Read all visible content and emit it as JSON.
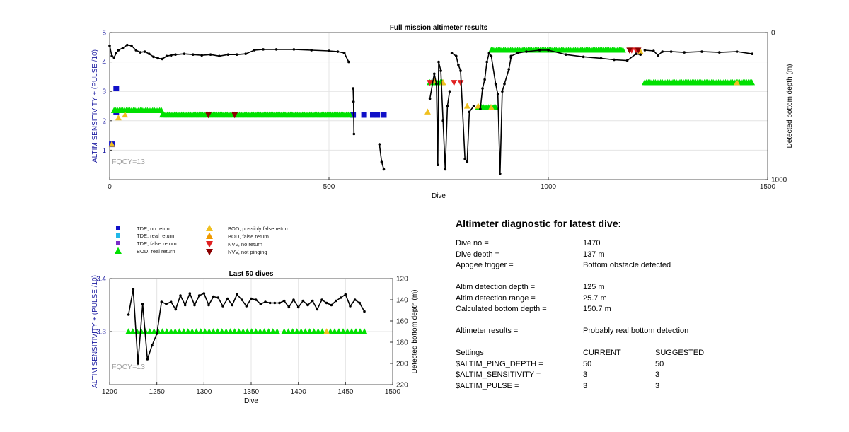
{
  "colors": {
    "tde_no_return": "#1010c8",
    "tde_real_return": "#20b8e8",
    "tde_false_return": "#7a2cc8",
    "bod_real_return": "#00e000",
    "bod_possibly_false_return": "#f0c020",
    "bod_false_return": "#f09a00",
    "nvv_no_return": "#e02020",
    "nvv_not_pinging": "#8a0000",
    "depth_line": "#000000",
    "axis_left": "#1a1aa0",
    "fqcy": "#a0a0a0"
  },
  "chart_data": [
    {
      "type": "scatter",
      "title": "Full mission altimeter results",
      "xlabel": "Dive",
      "ylabel": "ALTIM SENSITIVITY + (PULSE /10)",
      "y2label": "Detected bottom depth (m)",
      "xlim": [
        0,
        1500
      ],
      "ylim": [
        0,
        5
      ],
      "y2lim": [
        0,
        1000
      ],
      "y2_reversed": true,
      "x_ticks": [
        "0",
        "500",
        "1000",
        "1500"
      ],
      "y_ticks": [
        "1",
        "2",
        "3",
        "4",
        "5"
      ],
      "y2_ticks": [
        "0",
        "1000"
      ],
      "annotation": "FQCY=13",
      "grid": true,
      "series": [
        {
          "name": "TDE, no return",
          "marker": "square",
          "x": [
            5,
            15,
            15,
            555,
            580,
            600,
            610,
            625
          ],
          "y": [
            1.2,
            3.1,
            2.3,
            2.2,
            2.2,
            2.2,
            2.2,
            2.2
          ]
        },
        {
          "name": "BOD, real return",
          "marker": "triangle-up",
          "segments": [
            [
              10,
              120,
              2.35
            ],
            [
              120,
              550,
              2.2
            ],
            [
              730,
              760,
              3.3
            ],
            [
              840,
              880,
              2.45
            ],
            [
              870,
              1170,
              4.4
            ],
            [
              1220,
              1465,
              3.3
            ]
          ]
        },
        {
          "name": "BOD, possibly false return",
          "marker": "triangle-up",
          "x": [
            5,
            20,
            35,
            725,
            740,
            760,
            815,
            840,
            870,
            1210,
            1430
          ],
          "y": [
            1.2,
            2.1,
            2.2,
            2.3,
            3.35,
            3.3,
            2.5,
            2.5,
            2.45,
            4.35,
            3.3
          ]
        },
        {
          "name": "NVV, no return",
          "marker": "triangle-down",
          "x": [
            730,
            785,
            800,
            1190,
            1200
          ],
          "y": [
            3.3,
            3.3,
            3.3,
            4.4,
            4.4
          ]
        },
        {
          "name": "NVV, not pinging",
          "marker": "triangle-down",
          "x": [
            225,
            285,
            1185,
            1205
          ],
          "y": [
            2.2,
            2.2,
            4.4,
            4.4
          ]
        }
      ],
      "depth_series": {
        "name": "Detected bottom depth",
        "segments": [
          [
            [
              0,
              90
            ],
            [
              5,
              160
            ],
            [
              10,
              170
            ],
            [
              15,
              140
            ],
            [
              20,
              120
            ],
            [
              30,
              105
            ],
            [
              40,
              85
            ],
            [
              50,
              90
            ],
            [
              60,
              120
            ],
            [
              70,
              135
            ],
            [
              80,
              130
            ],
            [
              90,
              145
            ],
            [
              100,
              165
            ],
            [
              110,
              175
            ],
            [
              120,
              180
            ],
            [
              130,
              160
            ],
            [
              140,
              155
            ],
            [
              150,
              150
            ],
            [
              170,
              145
            ],
            [
              190,
              150
            ],
            [
              210,
              155
            ],
            [
              230,
              150
            ],
            [
              250,
              160
            ],
            [
              270,
              150
            ],
            [
              290,
              150
            ],
            [
              310,
              145
            ],
            [
              330,
              120
            ],
            [
              350,
              115
            ],
            [
              380,
              115
            ],
            [
              420,
              115
            ],
            [
              460,
              120
            ],
            [
              500,
              125
            ],
            [
              520,
              130
            ],
            [
              535,
              140
            ],
            [
              545,
              200
            ]
          ],
          [
            [
              555,
              380
            ],
            [
              556,
              470
            ],
            [
              557,
              690
            ]
          ],
          [
            [
              615,
              760
            ],
            [
              620,
              880
            ],
            [
              625,
              930
            ]
          ],
          [
            [
              730,
              450
            ],
            [
              740,
              280
            ],
            [
              745,
              350
            ],
            [
              748,
              900
            ],
            [
              750,
              200
            ],
            [
              755,
              260
            ],
            [
              760,
              600
            ],
            [
              765,
              930
            ],
            [
              770,
              500
            ],
            [
              775,
              400
            ]
          ],
          [
            [
              780,
              140
            ],
            [
              790,
              160
            ],
            [
              795,
              220
            ],
            [
              800,
              260
            ],
            [
              810,
              860
            ],
            [
              815,
              880
            ],
            [
              820,
              540
            ],
            [
              830,
              500
            ]
          ],
          [
            [
              845,
              520
            ],
            [
              850,
              380
            ],
            [
              855,
              320
            ],
            [
              860,
              200
            ],
            [
              865,
              140
            ],
            [
              870,
              160
            ],
            [
              880,
              350
            ],
            [
              885,
              420
            ],
            [
              890,
              960
            ],
            [
              895,
              400
            ],
            [
              900,
              350
            ],
            [
              910,
              250
            ],
            [
              915,
              170
            ]
          ],
          [
            [
              915,
              160
            ],
            [
              930,
              140
            ],
            [
              950,
              130
            ],
            [
              980,
              120
            ],
            [
              1000,
              120
            ],
            [
              1040,
              150
            ],
            [
              1080,
              165
            ],
            [
              1120,
              175
            ],
            [
              1150,
              185
            ],
            [
              1180,
              190
            ],
            [
              1200,
              145
            ],
            [
              1210,
              150
            ]
          ],
          [
            [
              1220,
              120
            ],
            [
              1240,
              125
            ],
            [
              1250,
              155
            ],
            [
              1260,
              130
            ],
            [
              1280,
              130
            ],
            [
              1310,
              135
            ],
            [
              1350,
              130
            ],
            [
              1390,
              135
            ],
            [
              1430,
              130
            ],
            [
              1465,
              145
            ]
          ]
        ]
      }
    },
    {
      "type": "scatter",
      "title": "Last 50 dives",
      "xlabel": "Dive",
      "ylabel": "ALTIM SENSITIVITY + (PULSE /10)",
      "y2label": "Detected bottom depth (m)",
      "xlim": [
        1200,
        1500
      ],
      "ylim": [
        3.2,
        3.4
      ],
      "y2lim": [
        120,
        220
      ],
      "y2_reversed": true,
      "x_ticks": [
        "1200",
        "1250",
        "1300",
        "1350",
        "1400",
        "1450",
        "1500"
      ],
      "y_ticks": [
        "3.3",
        "3.4"
      ],
      "y2_ticks": [
        "120",
        "140",
        "160",
        "180",
        "200",
        "220"
      ],
      "annotation": "FQCY=13",
      "grid": true,
      "series": [
        {
          "name": "BOD, real return",
          "marker": "triangle-up",
          "segments": [
            [
              1220,
              1380,
              3.3
            ],
            [
              1385,
              1428,
              3.3
            ],
            [
              1434,
              1470,
              3.3
            ]
          ]
        },
        {
          "name": "BOD, possibly false return",
          "marker": "triangle-up",
          "x": [
            1430
          ],
          "y": [
            3.3
          ]
        }
      ],
      "depth_series": {
        "name": "Detected bottom depth",
        "x": [
          1220,
          1225,
          1230,
          1235,
          1240,
          1245,
          1250,
          1255,
          1260,
          1265,
          1270,
          1275,
          1280,
          1285,
          1290,
          1295,
          1300,
          1305,
          1310,
          1315,
          1320,
          1325,
          1330,
          1335,
          1340,
          1345,
          1350,
          1355,
          1360,
          1365,
          1370,
          1375,
          1380,
          1385,
          1390,
          1395,
          1400,
          1405,
          1410,
          1415,
          1420,
          1425,
          1430,
          1435,
          1440,
          1445,
          1450,
          1455,
          1460,
          1465,
          1470
        ],
        "y": [
          154,
          130,
          200,
          144,
          196,
          183,
          172,
          142,
          144,
          142,
          149,
          136,
          145,
          134,
          145,
          136,
          134,
          145,
          137,
          138,
          146,
          139,
          145,
          135,
          140,
          146,
          139,
          140,
          144,
          142,
          143,
          143,
          143,
          141,
          147,
          140,
          147,
          141,
          145,
          141,
          149,
          140,
          143,
          145,
          141,
          138,
          135,
          146,
          140,
          143,
          151
        ]
      }
    }
  ],
  "legend": {
    "items": [
      {
        "label": "TDE, no return",
        "marker": "square",
        "color_key": "tde_no_return"
      },
      {
        "label": "TDE, real return",
        "marker": "square",
        "color_key": "tde_real_return"
      },
      {
        "label": "TDE, false return",
        "marker": "square",
        "color_key": "tde_false_return"
      },
      {
        "label": "BOD, real return",
        "marker": "triangle-up",
        "color_key": "bod_real_return"
      },
      {
        "label": "BOD, possibly false return",
        "marker": "triangle-up",
        "color_key": "bod_possibly_false_return"
      },
      {
        "label": "BOD, false return",
        "marker": "triangle-up",
        "color_key": "bod_false_return"
      },
      {
        "label": "NVV, no return",
        "marker": "triangle-down",
        "color_key": "nvv_no_return"
      },
      {
        "label": "NVV, not pinging",
        "marker": "triangle-down",
        "color_key": "nvv_not_pinging"
      }
    ]
  },
  "diagnostic": {
    "heading": "Altimeter diagnostic for latest dive:",
    "dive_no": {
      "label": "Dive no =",
      "value": "1470"
    },
    "dive_depth": {
      "label": "Dive depth =",
      "value": "137 m"
    },
    "apogee_trigger": {
      "label": "Apogee trigger =",
      "value": "Bottom obstacle detected"
    },
    "altim_detection_depth": {
      "label": "Altim detection depth =",
      "value": "125 m"
    },
    "altim_detection_range": {
      "label": "Altim detection range =",
      "value": "25.7 m"
    },
    "calculated_bottom_depth": {
      "label": "Calculated bottom depth =",
      "value": "150.7 m"
    },
    "altimeter_results": {
      "label": "Altimeter results =",
      "value": "Probably real bottom detection"
    },
    "settings": {
      "header": {
        "label": "Settings",
        "current": "CURRENT",
        "suggested": "SUGGESTED"
      },
      "rows": [
        {
          "label": "$ALTIM_PING_DEPTH =",
          "current": "50",
          "suggested": "50"
        },
        {
          "label": "$ALTIM_SENSITIVITY =",
          "current": "3",
          "suggested": "3"
        },
        {
          "label": "$ALTIM_PULSE =",
          "current": "3",
          "suggested": "3"
        }
      ]
    }
  }
}
